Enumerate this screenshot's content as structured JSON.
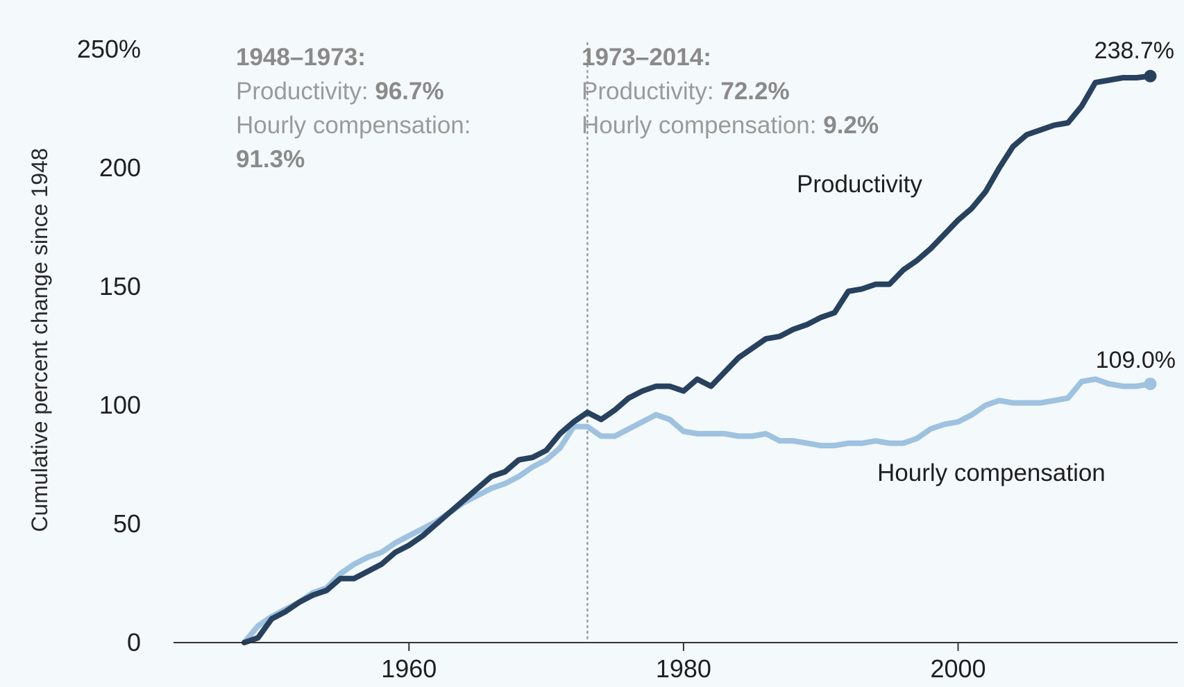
{
  "colors": {
    "background": "#f4f9fb",
    "productivity": "#27415f",
    "compensation": "#9ec2e0",
    "axis": "#333333",
    "divider": "#9a9a9a",
    "annotation": "#9a9a9a"
  },
  "chart_data": {
    "type": "line",
    "title": "",
    "xlabel": "",
    "ylabel": "Cumulative percent change since 1948",
    "xlim": [
      1943,
      2016
    ],
    "ylim": [
      0,
      250
    ],
    "x_ticks": [
      {
        "value": 1960,
        "label": "1960"
      },
      {
        "value": 1980,
        "label": "1980"
      },
      {
        "value": 2000,
        "label": "2000"
      }
    ],
    "y_ticks": [
      {
        "value": 250,
        "label": "250%"
      },
      {
        "value": 200,
        "label": "200"
      },
      {
        "value": 150,
        "label": "150"
      },
      {
        "value": 100,
        "label": "100"
      },
      {
        "value": 50,
        "label": "50"
      },
      {
        "value": 0,
        "label": "0"
      }
    ],
    "divider_year": 1973,
    "series": [
      {
        "name": "Productivity",
        "label": "Productivity",
        "end_label": "238.7%",
        "color": "#27415f",
        "x": [
          1948,
          1949,
          1950,
          1951,
          1952,
          1953,
          1954,
          1955,
          1956,
          1957,
          1958,
          1959,
          1960,
          1961,
          1962,
          1963,
          1964,
          1965,
          1966,
          1967,
          1968,
          1969,
          1970,
          1971,
          1972,
          1973,
          1974,
          1975,
          1976,
          1977,
          1978,
          1979,
          1980,
          1981,
          1982,
          1983,
          1984,
          1985,
          1986,
          1987,
          1988,
          1989,
          1990,
          1991,
          1992,
          1993,
          1994,
          1995,
          1996,
          1997,
          1998,
          1999,
          2000,
          2001,
          2002,
          2003,
          2004,
          2005,
          2006,
          2007,
          2008,
          2009,
          2010,
          2011,
          2012,
          2013,
          2014
        ],
        "values": [
          0,
          2,
          10,
          13,
          17,
          20,
          22,
          27,
          27,
          30,
          33,
          38,
          41,
          45,
          50,
          55,
          60,
          65,
          70,
          72,
          77,
          78,
          81,
          88,
          93,
          97,
          94,
          98,
          103,
          106,
          108,
          108,
          106,
          111,
          108,
          114,
          120,
          124,
          128,
          129,
          132,
          134,
          137,
          139,
          148,
          149,
          151,
          151,
          157,
          161,
          166,
          172,
          178,
          183,
          190,
          200,
          209,
          214,
          216,
          218,
          219,
          226,
          236,
          237,
          238,
          238,
          238.7
        ]
      },
      {
        "name": "Hourly compensation",
        "label": "Hourly compensation",
        "end_label": "109.0%",
        "color": "#9ec2e0",
        "x": [
          1948,
          1949,
          1950,
          1951,
          1952,
          1953,
          1954,
          1955,
          1956,
          1957,
          1958,
          1959,
          1960,
          1961,
          1962,
          1963,
          1964,
          1965,
          1966,
          1967,
          1968,
          1969,
          1970,
          1971,
          1972,
          1973,
          1974,
          1975,
          1976,
          1977,
          1978,
          1979,
          1980,
          1981,
          1982,
          1983,
          1984,
          1985,
          1986,
          1987,
          1988,
          1989,
          1990,
          1991,
          1992,
          1993,
          1994,
          1995,
          1996,
          1997,
          1998,
          1999,
          2000,
          2001,
          2002,
          2003,
          2004,
          2005,
          2006,
          2007,
          2008,
          2009,
          2010,
          2011,
          2012,
          2013,
          2014
        ],
        "values": [
          0,
          7,
          11,
          14,
          17,
          21,
          23,
          29,
          33,
          36,
          38,
          42,
          45,
          48,
          51,
          55,
          59,
          62,
          65,
          67,
          70,
          74,
          77,
          82,
          91,
          91,
          87,
          87,
          90,
          93,
          96,
          94,
          89,
          88,
          88,
          88,
          87,
          87,
          88,
          85,
          85,
          84,
          83,
          83,
          84,
          84,
          85,
          84,
          84,
          86,
          90,
          92,
          93,
          96,
          100,
          102,
          101,
          101,
          101,
          102,
          103,
          110,
          111,
          109,
          108,
          108,
          109.0
        ]
      }
    ],
    "annotations": [
      {
        "period": "1948–1973:",
        "productivity_label": "Productivity: ",
        "productivity_value": "96.7%",
        "compensation_label": "Hourly compensation:",
        "compensation_value": "91.3%"
      },
      {
        "period": "1973–2014:",
        "productivity_label": "Productivity: ",
        "productivity_value": "72.2%",
        "compensation_label": "Hourly compensation: ",
        "compensation_value": "9.2%"
      }
    ]
  }
}
